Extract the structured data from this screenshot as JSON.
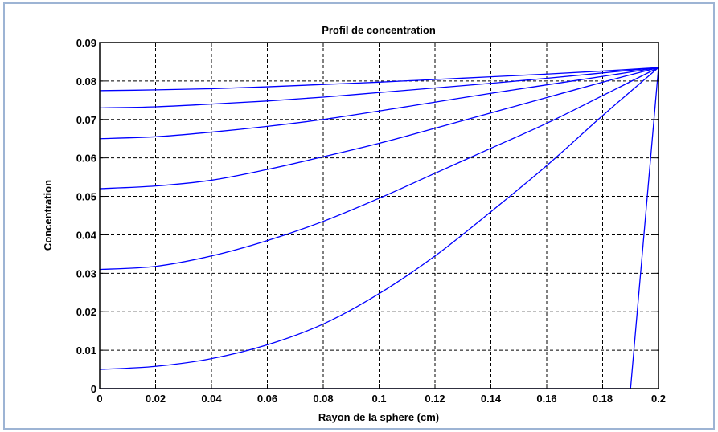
{
  "chart_data": {
    "type": "line",
    "title": "Profil de concentration",
    "xlabel": "Rayon de la sphere (cm)",
    "ylabel": "Concentration",
    "xlim": [
      0,
      0.2
    ],
    "ylim": [
      0,
      0.09
    ],
    "grid": true,
    "line_color": "#0000ff",
    "xticks": [
      "0",
      "0.02",
      "0.04",
      "0.06",
      "0.08",
      "0.1",
      "0.12",
      "0.14",
      "0.16",
      "0.18",
      "0.2"
    ],
    "yticks": [
      "0",
      "0.01",
      "0.02",
      "0.03",
      "0.04",
      "0.05",
      "0.06",
      "0.07",
      "0.08",
      "0.09"
    ],
    "series": [
      {
        "x": [
          0,
          0.19,
          0.2
        ],
        "y": [
          0,
          0,
          0.0835
        ]
      },
      {
        "x": [
          0,
          0.02,
          0.04,
          0.06,
          0.08,
          0.1,
          0.12,
          0.14,
          0.16,
          0.18,
          0.2
        ],
        "y": [
          0.005,
          0.0058,
          0.0078,
          0.0114,
          0.0168,
          0.0247,
          0.0345,
          0.046,
          0.058,
          0.071,
          0.0835
        ]
      },
      {
        "x": [
          0,
          0.02,
          0.04,
          0.06,
          0.08,
          0.1,
          0.12,
          0.14,
          0.16,
          0.18,
          0.2
        ],
        "y": [
          0.031,
          0.0318,
          0.0345,
          0.0385,
          0.0435,
          0.0495,
          0.056,
          0.0625,
          0.069,
          0.0762,
          0.0835
        ]
      },
      {
        "x": [
          0,
          0.02,
          0.04,
          0.06,
          0.08,
          0.1,
          0.12,
          0.14,
          0.16,
          0.18,
          0.2
        ],
        "y": [
          0.052,
          0.0527,
          0.0542,
          0.057,
          0.0603,
          0.0638,
          0.0677,
          0.0717,
          0.0757,
          0.0797,
          0.0835
        ]
      },
      {
        "x": [
          0,
          0.02,
          0.04,
          0.06,
          0.08,
          0.1,
          0.12,
          0.14,
          0.16,
          0.18,
          0.2
        ],
        "y": [
          0.065,
          0.0655,
          0.0667,
          0.0682,
          0.07,
          0.0722,
          0.0745,
          0.0768,
          0.079,
          0.0812,
          0.0835
        ]
      },
      {
        "x": [
          0,
          0.02,
          0.04,
          0.06,
          0.08,
          0.1,
          0.12,
          0.14,
          0.16,
          0.18,
          0.2
        ],
        "y": [
          0.073,
          0.0733,
          0.074,
          0.0748,
          0.0758,
          0.077,
          0.0782,
          0.0794,
          0.0807,
          0.0821,
          0.0835
        ]
      },
      {
        "x": [
          0,
          0.02,
          0.04,
          0.06,
          0.08,
          0.1,
          0.12,
          0.14,
          0.16,
          0.18,
          0.2
        ],
        "y": [
          0.0775,
          0.0777,
          0.078,
          0.0785,
          0.0791,
          0.0797,
          0.0804,
          0.0811,
          0.0818,
          0.0826,
          0.0835
        ]
      }
    ]
  }
}
